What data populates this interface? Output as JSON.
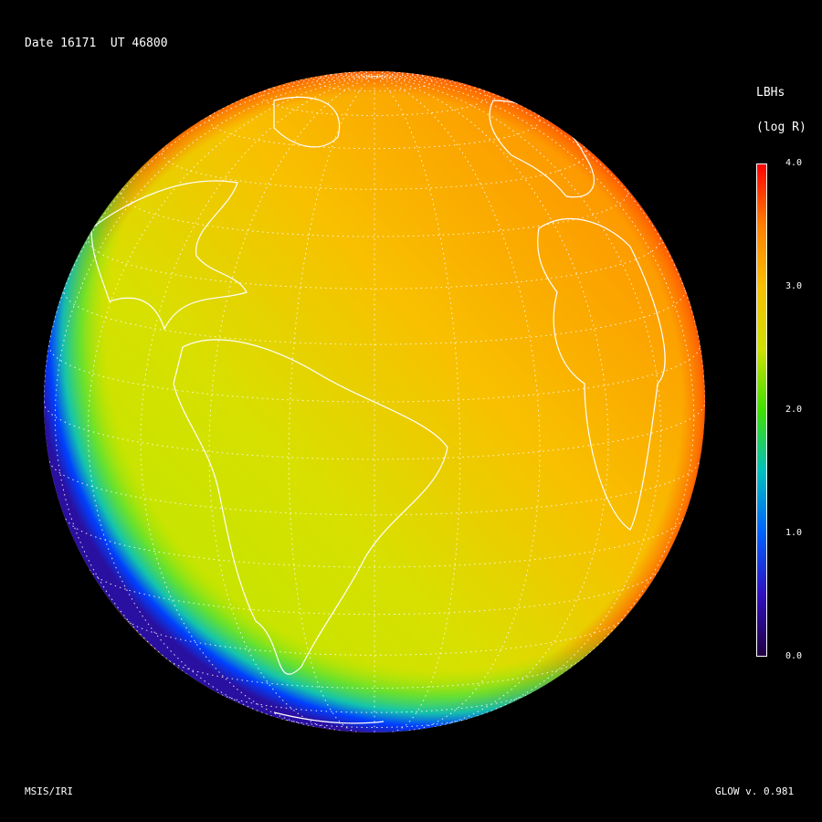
{
  "header": {
    "date_label": "Date 16171  UT 46800"
  },
  "footer": {
    "model_label": "MSIS/IRI",
    "version_label": "GLOW v. 0.981"
  },
  "colorbar": {
    "title": "LBHs",
    "units": "(log R)",
    "range": [
      0.0,
      4.0
    ],
    "ticks": [
      "4.0",
      "3.0",
      "2.0",
      "1.0",
      "0.0"
    ],
    "colors": [
      "#ff0000",
      "#ff8000",
      "#f8c000",
      "#d0e000",
      "#40e000",
      "#00c0c0",
      "#0060ff",
      "#3010c0",
      "#200040"
    ]
  },
  "map": {
    "projection": "orthographic",
    "quantity": "LBHs",
    "scale": "log",
    "grid": true,
    "coastlines": true,
    "colors": {
      "dayside_low": "#c8e000",
      "dayside_high": "#ff8000",
      "limb": "#2a10a0"
    }
  }
}
